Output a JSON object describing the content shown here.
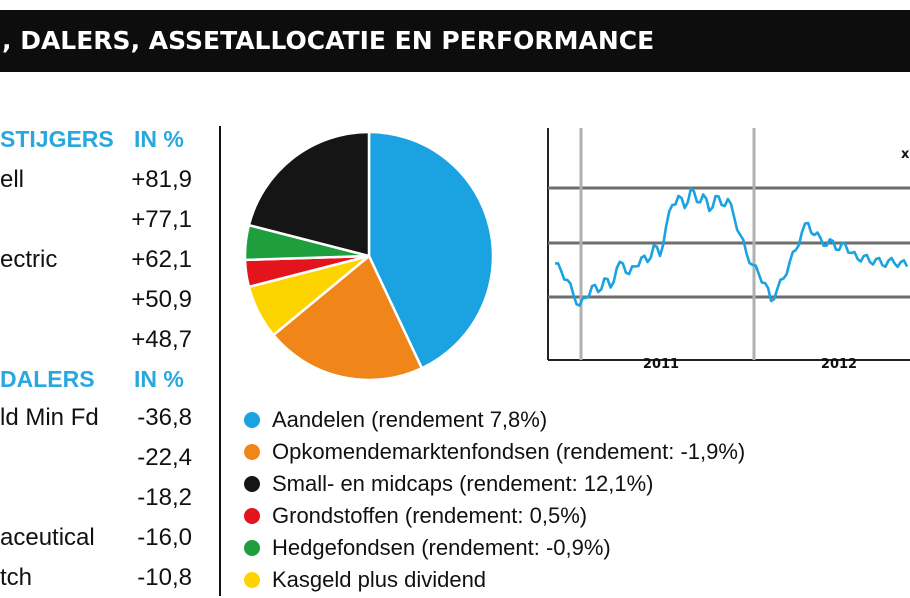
{
  "header": {
    "title": ", DALERS, ASSETALLOCATIE EN PERFORMANCE"
  },
  "stijgers": {
    "heading": "STIJGERS",
    "unit": "IN %",
    "rows": [
      {
        "name": "ell",
        "value": "+81,9"
      },
      {
        "name": "",
        "value": "+77,1"
      },
      {
        "name": "ectric",
        "value": "+62,1"
      },
      {
        "name": "",
        "value": "+50,9"
      },
      {
        "name": "",
        "value": "+48,7"
      }
    ]
  },
  "dalers": {
    "heading": "DALERS",
    "unit": "IN %",
    "rows": [
      {
        "name": "ld Min Fd",
        "value": "-36,8"
      },
      {
        "name": "",
        "value": "-22,4"
      },
      {
        "name": "",
        "value": "-18,2"
      },
      {
        "name": "aceutical",
        "value": "-16,0"
      },
      {
        "name": "tch",
        "value": "-10,8"
      }
    ]
  },
  "legend": [
    {
      "label": "Aandelen (rendement 7,8%)",
      "color": "#1aa3e0"
    },
    {
      "label": "Opkomendemarktenfondsen (rendement: -1,9%)",
      "color": "#f0861a"
    },
    {
      "label": "Small- en midcaps (rendement: 12,1%)",
      "color": "#151515"
    },
    {
      "label": "Grondstoffen (rendement: 0,5%)",
      "color": "#e3141b"
    },
    {
      "label": "Hedgefondsen (rendement: -0,9%)",
      "color": "#1e9e3c"
    },
    {
      "label": "Kasgeld plus dividend",
      "color": "#fed400"
    }
  ],
  "chart_data": [
    {
      "type": "pie",
      "labels": [
        "Aandelen",
        "Opkomendemarktenfondsen",
        "Small- en midcaps",
        "Grondstoffen",
        "Hedgefondsen",
        "Kasgeld plus dividend"
      ],
      "values": [
        43,
        21,
        21,
        3.5,
        4.5,
        7
      ],
      "colors": [
        "#1aa3e0",
        "#f0861a",
        "#151515",
        "#e3141b",
        "#1e9e3c",
        "#fed400"
      ],
      "order": [
        0,
        1,
        5,
        3,
        4,
        2
      ]
    },
    {
      "type": "line",
      "xticks": [
        "2011",
        "2012"
      ],
      "corner_mark": "x",
      "color": "#1aa3e0",
      "y": [
        0.43,
        0.38,
        0.32,
        0.22,
        0.15,
        0.2,
        0.28,
        0.24,
        0.33,
        0.27,
        0.4,
        0.43,
        0.36,
        0.41,
        0.47,
        0.44,
        0.55,
        0.48,
        0.68,
        0.82,
        0.88,
        0.8,
        0.93,
        0.84,
        0.89,
        0.78,
        0.88,
        0.82,
        0.86,
        0.74,
        0.62,
        0.5,
        0.42,
        0.36,
        0.3,
        0.18,
        0.26,
        0.33,
        0.44,
        0.52,
        0.64,
        0.7,
        0.62,
        0.6,
        0.55,
        0.58,
        0.52,
        0.56,
        0.5,
        0.46,
        0.48,
        0.44,
        0.46,
        0.42,
        0.45,
        0.43,
        0.44,
        0.41
      ]
    }
  ]
}
